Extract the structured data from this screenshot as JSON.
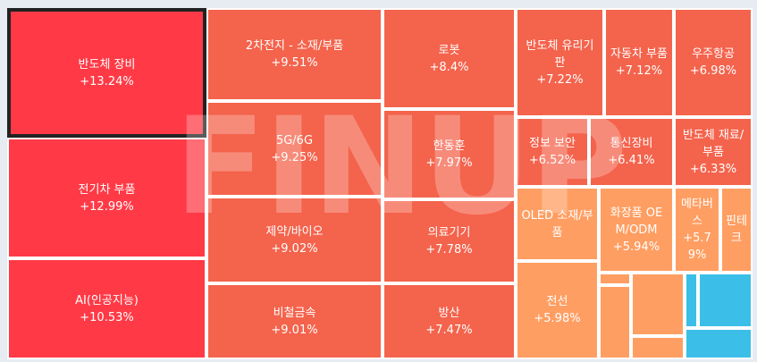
{
  "watermark": "FINUP",
  "colors": {
    "deep_red": "#ff3a46",
    "orange_red": "#f4634c",
    "light_orange": "#ff9e62",
    "blue": "#3bbfe8",
    "border": "#ffffff",
    "selected_border": "#222222"
  },
  "chart_data": {
    "type": "treemap",
    "value_unit": "%",
    "tiles": [
      {
        "name": "반도체 장비",
        "change": 13.24,
        "label": "반도체 장비",
        "change_text": "+13.24%",
        "selected": true
      },
      {
        "name": "전기차 부품",
        "change": 12.99,
        "label": "전기차 부품",
        "change_text": "+12.99%"
      },
      {
        "name": "AI(인공지능)",
        "change": 10.53,
        "label": "AI(인공지능)",
        "change_text": "+10.53%"
      },
      {
        "name": "2차전지 - 소재/부품",
        "change": 9.51,
        "label": "2차전지 - 소재/부품",
        "change_text": "+9.51%"
      },
      {
        "name": "5G/6G",
        "change": 9.25,
        "label": "5G/6G",
        "change_text": "+9.25%"
      },
      {
        "name": "제약/바이오",
        "change": 9.02,
        "label": "제약/바이오",
        "change_text": "+9.02%"
      },
      {
        "name": "비철금속",
        "change": 9.01,
        "label": "비철금속",
        "change_text": "+9.01%"
      },
      {
        "name": "로봇",
        "change": 8.4,
        "label": "로봇",
        "change_text": "+8.4%"
      },
      {
        "name": "한동훈",
        "change": 7.97,
        "label": "한동훈",
        "change_text": "+7.97%"
      },
      {
        "name": "의료기기",
        "change": 7.78,
        "label": "의료기기",
        "change_text": "+7.78%"
      },
      {
        "name": "방산",
        "change": 7.47,
        "label": "방산",
        "change_text": "+7.47%"
      },
      {
        "name": "반도체 유리기판",
        "change": 7.22,
        "label": "반도체 유리기판",
        "change_text": "+7.22%"
      },
      {
        "name": "자동차 부품",
        "change": 7.12,
        "label": "자동차 부품",
        "change_text": "+7.12%"
      },
      {
        "name": "우주항공",
        "change": 6.98,
        "label": "우주항공",
        "change_text": "+6.98%"
      },
      {
        "name": "정보 보안",
        "change": 6.52,
        "label": "정보 보안",
        "change_text": "+6.52%"
      },
      {
        "name": "통신장비",
        "change": 6.41,
        "label": "통신장비",
        "change_text": "+6.41%"
      },
      {
        "name": "반도체 재료/부품",
        "change": 6.33,
        "label": "반도체 재료/부품",
        "change_text": "+6.33%"
      },
      {
        "name": "OLED 소재/부품",
        "change": null,
        "label": "OLED 소재/부품",
        "change_text": ""
      },
      {
        "name": "화장품 OEM/ODM",
        "change": 5.94,
        "label": "화장품 OEM/ODM",
        "change_text": "+5.94%"
      },
      {
        "name": "메타버스",
        "change": 5.79,
        "label": "메타버스",
        "change_text": "+5.79%"
      },
      {
        "name": "핀테크",
        "change": null,
        "label": "핀테크",
        "change_text": ""
      },
      {
        "name": "전선",
        "change": 5.98,
        "label": "전선",
        "change_text": "+5.98%"
      },
      {
        "name": "",
        "change": null,
        "label": "",
        "change_text": ""
      },
      {
        "name": "",
        "change": null,
        "label": "",
        "change_text": ""
      },
      {
        "name": "",
        "change": null,
        "label": "",
        "change_text": ""
      },
      {
        "name": "",
        "change": null,
        "label": "",
        "change_text": ""
      },
      {
        "name": "",
        "change": null,
        "label": "",
        "change_text": ""
      },
      {
        "name": "",
        "change": null,
        "label": "",
        "change_text": ""
      },
      {
        "name": "",
        "change": null,
        "label": "",
        "change_text": ""
      }
    ]
  }
}
